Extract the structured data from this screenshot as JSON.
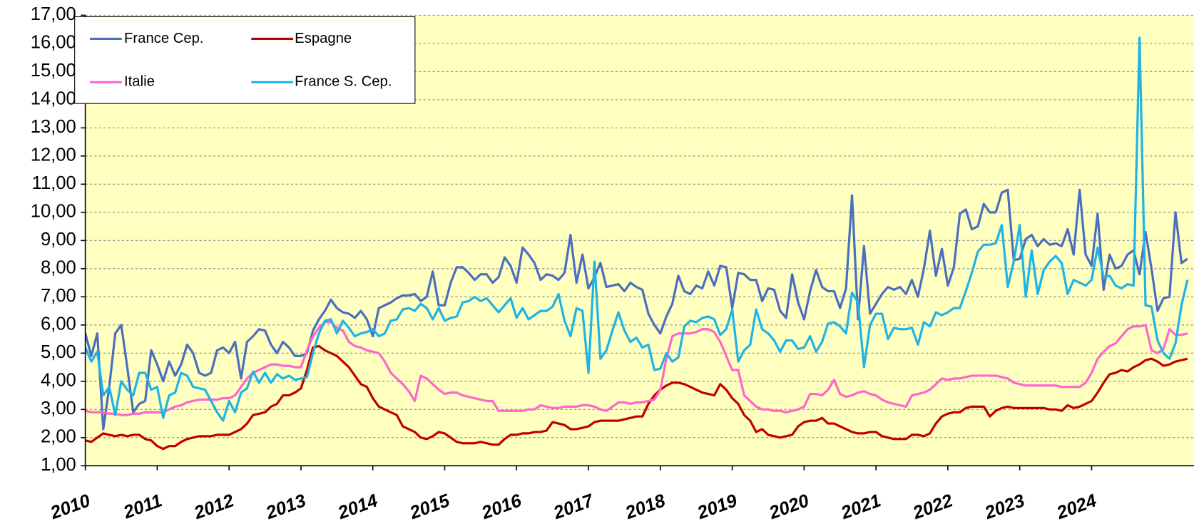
{
  "chart_data": {
    "type": "line",
    "categories": [
      "2010",
      null,
      null,
      null,
      null,
      null,
      null,
      null,
      null,
      null,
      null,
      null,
      "2011",
      null,
      null,
      null,
      null,
      null,
      null,
      null,
      null,
      null,
      null,
      null,
      "2012",
      null,
      null,
      null,
      null,
      null,
      null,
      null,
      null,
      null,
      null,
      null,
      "2013",
      null,
      null,
      null,
      null,
      null,
      null,
      null,
      null,
      null,
      null,
      null,
      "2014",
      null,
      null,
      null,
      null,
      null,
      null,
      null,
      null,
      null,
      null,
      null,
      "2015",
      null,
      null,
      null,
      null,
      null,
      null,
      null,
      null,
      null,
      null,
      null,
      "2016",
      null,
      null,
      null,
      null,
      null,
      null,
      null,
      null,
      null,
      null,
      null,
      "2017",
      null,
      null,
      null,
      null,
      null,
      null,
      null,
      null,
      null,
      null,
      null,
      "2018",
      null,
      null,
      null,
      null,
      null,
      null,
      null,
      null,
      null,
      null,
      null,
      "2019",
      null,
      null,
      null,
      null,
      null,
      null,
      null,
      null,
      null,
      null,
      null,
      "2020",
      null,
      null,
      null,
      null,
      null,
      null,
      null,
      null,
      null,
      null,
      null,
      "2021",
      null,
      null,
      null,
      null,
      null,
      null,
      null,
      null,
      null,
      null,
      null,
      "2022",
      null,
      null,
      null,
      null,
      null,
      null,
      null,
      null,
      null,
      null,
      null,
      "2023",
      null,
      null,
      null,
      null,
      null,
      null,
      null,
      null,
      null,
      null,
      null,
      "2024",
      null,
      null,
      null,
      null,
      null,
      null,
      null,
      null,
      null,
      null,
      null,
      null,
      null,
      null,
      null,
      null
    ],
    "series": [
      {
        "name": "France Cep.",
        "color": "#4a6fbf",
        "values": [
          5.7,
          4.9,
          5.7,
          2.3,
          3.8,
          5.7,
          6.0,
          4.5,
          2.9,
          3.2,
          3.3,
          5.1,
          4.6,
          4.0,
          4.7,
          4.2,
          4.6,
          5.3,
          5.0,
          4.3,
          4.2,
          4.3,
          5.1,
          5.2,
          5.0,
          5.4,
          4.1,
          5.4,
          5.6,
          5.85,
          5.8,
          5.3,
          5.0,
          5.4,
          5.2,
          4.9,
          4.9,
          5.0,
          5.8,
          6.2,
          6.5,
          6.9,
          6.6,
          6.45,
          6.4,
          6.25,
          6.5,
          6.2,
          5.6,
          6.6,
          6.7,
          6.8,
          6.95,
          7.05,
          7.05,
          7.1,
          6.85,
          7.0,
          7.9,
          6.7,
          6.7,
          7.5,
          8.05,
          8.05,
          7.85,
          7.6,
          7.8,
          7.8,
          7.5,
          7.7,
          8.4,
          8.1,
          7.5,
          8.75,
          8.5,
          8.2,
          7.6,
          7.8,
          7.75,
          7.6,
          7.85,
          9.2,
          7.5,
          8.5,
          7.3,
          7.7,
          8.2,
          7.35,
          7.4,
          7.45,
          7.2,
          7.5,
          7.35,
          7.25,
          6.4,
          6.0,
          5.7,
          6.3,
          6.75,
          7.75,
          7.2,
          7.1,
          7.4,
          7.3,
          7.9,
          7.4,
          8.1,
          8.05,
          6.6,
          7.85,
          7.8,
          7.6,
          7.6,
          6.85,
          7.3,
          7.25,
          6.5,
          6.25,
          7.8,
          6.8,
          6.2,
          7.2,
          7.95,
          7.35,
          7.2,
          7.2,
          6.6,
          7.3,
          10.6,
          6.2,
          8.8,
          6.4,
          6.75,
          7.1,
          7.35,
          7.25,
          7.35,
          7.1,
          7.6,
          7.0,
          8.0,
          9.35,
          7.75,
          8.7,
          7.4,
          8.05,
          9.95,
          10.1,
          9.4,
          9.5,
          10.3,
          10.0,
          10.0,
          10.7,
          10.8,
          8.3,
          8.35,
          9.05,
          9.2,
          8.8,
          9.05,
          8.85,
          8.9,
          8.8,
          9.4,
          8.5,
          10.8,
          8.5,
          8.1,
          9.95,
          7.25,
          8.5,
          8.0,
          8.1,
          8.5,
          8.65,
          7.8,
          9.3,
          8.0,
          6.5,
          6.95,
          7.0,
          10.0,
          8.2,
          8.35
        ]
      },
      {
        "name": "Espagne",
        "color": "#c00000",
        "values": [
          1.9,
          1.85,
          2.0,
          2.15,
          2.1,
          2.05,
          2.1,
          2.05,
          2.1,
          2.1,
          1.95,
          1.9,
          1.7,
          1.6,
          1.7,
          1.7,
          1.85,
          1.95,
          2.0,
          2.05,
          2.05,
          2.05,
          2.1,
          2.1,
          2.1,
          2.2,
          2.3,
          2.5,
          2.8,
          2.85,
          2.9,
          3.1,
          3.2,
          3.5,
          3.5,
          3.6,
          3.75,
          4.4,
          5.2,
          5.25,
          5.1,
          5.0,
          4.9,
          4.7,
          4.5,
          4.2,
          3.9,
          3.8,
          3.4,
          3.1,
          3.0,
          2.9,
          2.8,
          2.4,
          2.3,
          2.2,
          2.0,
          1.95,
          2.05,
          2.2,
          2.15,
          2.0,
          1.85,
          1.8,
          1.8,
          1.8,
          1.85,
          1.8,
          1.75,
          1.75,
          1.95,
          2.1,
          2.1,
          2.15,
          2.15,
          2.2,
          2.2,
          2.25,
          2.55,
          2.5,
          2.45,
          2.3,
          2.3,
          2.35,
          2.4,
          2.55,
          2.6,
          2.6,
          2.6,
          2.6,
          2.65,
          2.7,
          2.75,
          2.75,
          3.2,
          3.5,
          3.7,
          3.85,
          3.95,
          3.95,
          3.9,
          3.8,
          3.7,
          3.6,
          3.55,
          3.5,
          3.9,
          3.7,
          3.4,
          3.2,
          2.8,
          2.6,
          2.2,
          2.3,
          2.1,
          2.05,
          2.0,
          2.05,
          2.1,
          2.4,
          2.55,
          2.6,
          2.6,
          2.7,
          2.5,
          2.5,
          2.4,
          2.3,
          2.2,
          2.15,
          2.15,
          2.2,
          2.2,
          2.05,
          2.0,
          1.95,
          1.95,
          1.95,
          2.1,
          2.1,
          2.05,
          2.15,
          2.5,
          2.75,
          2.85,
          2.9,
          2.9,
          3.05,
          3.1,
          3.1,
          3.1,
          2.75,
          2.95,
          3.05,
          3.1,
          3.05,
          3.05,
          3.05,
          3.05,
          3.05,
          3.05,
          3.0,
          3.0,
          2.95,
          3.15,
          3.05,
          3.1,
          3.2,
          3.3,
          3.6,
          3.95,
          4.25,
          4.3,
          4.4,
          4.35,
          4.5,
          4.6,
          4.75,
          4.8,
          4.7,
          4.55,
          4.6,
          4.7,
          4.75,
          4.8
        ]
      },
      {
        "name": "Italie",
        "color": "#ff66cc",
        "values": [
          2.95,
          2.9,
          2.9,
          2.9,
          2.85,
          2.85,
          2.8,
          2.8,
          2.85,
          2.85,
          2.9,
          2.9,
          2.9,
          2.9,
          3.0,
          3.1,
          3.15,
          3.25,
          3.3,
          3.35,
          3.35,
          3.35,
          3.35,
          3.4,
          3.4,
          3.5,
          3.8,
          4.1,
          4.3,
          4.4,
          4.5,
          4.6,
          4.6,
          4.55,
          4.55,
          4.5,
          4.5,
          5.1,
          5.6,
          5.9,
          6.1,
          6.1,
          5.9,
          5.8,
          5.4,
          5.25,
          5.2,
          5.1,
          5.05,
          5.0,
          4.7,
          4.3,
          4.1,
          3.9,
          3.65,
          3.3,
          4.2,
          4.1,
          3.9,
          3.7,
          3.55,
          3.6,
          3.6,
          3.5,
          3.45,
          3.4,
          3.35,
          3.3,
          3.3,
          2.95,
          2.95,
          2.95,
          2.95,
          2.95,
          3.0,
          3.0,
          3.15,
          3.1,
          3.05,
          3.05,
          3.1,
          3.1,
          3.1,
          3.15,
          3.15,
          3.1,
          3.0,
          2.95,
          3.1,
          3.25,
          3.25,
          3.2,
          3.25,
          3.25,
          3.3,
          3.35,
          3.7,
          4.8,
          5.6,
          5.7,
          5.7,
          5.7,
          5.75,
          5.85,
          5.85,
          5.75,
          5.4,
          4.9,
          4.4,
          4.4,
          3.5,
          3.3,
          3.1,
          3.0,
          3.0,
          2.95,
          2.95,
          2.9,
          2.95,
          3.0,
          3.1,
          3.55,
          3.55,
          3.5,
          3.7,
          4.05,
          3.55,
          3.45,
          3.5,
          3.6,
          3.65,
          3.55,
          3.5,
          3.35,
          3.25,
          3.2,
          3.15,
          3.1,
          3.5,
          3.55,
          3.6,
          3.7,
          3.9,
          4.1,
          4.05,
          4.1,
          4.1,
          4.15,
          4.2,
          4.2,
          4.2,
          4.2,
          4.2,
          4.15,
          4.1,
          3.95,
          3.9,
          3.85,
          3.85,
          3.85,
          3.85,
          3.85,
          3.85,
          3.8,
          3.8,
          3.8,
          3.8,
          3.95,
          4.3,
          4.8,
          5.05,
          5.25,
          5.35,
          5.6,
          5.85,
          5.95,
          5.95,
          6.0,
          5.1,
          5.0,
          5.15,
          5.85,
          5.65,
          5.65,
          5.7
        ]
      },
      {
        "name": "France S. Cep.",
        "color": "#1eb4e6",
        "values": [
          5.2,
          4.7,
          5.05,
          3.5,
          3.8,
          2.8,
          4.0,
          3.7,
          3.5,
          4.3,
          4.3,
          3.7,
          3.8,
          2.7,
          3.5,
          3.6,
          4.3,
          4.2,
          3.8,
          3.75,
          3.7,
          3.3,
          2.9,
          2.6,
          3.3,
          2.9,
          3.6,
          3.75,
          4.35,
          3.95,
          4.3,
          3.95,
          4.25,
          4.1,
          4.2,
          4.05,
          4.1,
          4.15,
          5.0,
          5.7,
          6.15,
          6.2,
          5.7,
          6.15,
          5.9,
          5.6,
          5.7,
          5.75,
          5.85,
          5.6,
          5.7,
          6.15,
          6.2,
          6.55,
          6.6,
          6.5,
          6.75,
          6.6,
          6.2,
          6.6,
          6.15,
          6.25,
          6.3,
          6.8,
          6.85,
          7.0,
          6.85,
          6.95,
          6.7,
          6.45,
          6.7,
          6.95,
          6.25,
          6.6,
          6.2,
          6.35,
          6.5,
          6.5,
          6.65,
          7.1,
          6.15,
          5.6,
          6.6,
          6.5,
          4.3,
          8.25,
          4.8,
          5.1,
          5.8,
          6.45,
          5.8,
          5.4,
          5.55,
          5.2,
          5.3,
          4.4,
          4.45,
          5.0,
          4.7,
          4.85,
          5.95,
          6.15,
          6.1,
          6.25,
          6.3,
          6.2,
          5.65,
          5.85,
          6.55,
          4.7,
          5.1,
          5.3,
          6.55,
          5.85,
          5.7,
          5.45,
          5.05,
          5.45,
          5.45,
          5.15,
          5.2,
          5.6,
          5.05,
          5.4,
          6.05,
          6.1,
          5.95,
          5.7,
          7.15,
          6.8,
          4.5,
          6.0,
          6.4,
          6.4,
          5.5,
          5.9,
          5.85,
          5.85,
          5.9,
          5.3,
          6.1,
          5.95,
          6.45,
          6.35,
          6.45,
          6.6,
          6.6,
          7.2,
          7.85,
          8.6,
          8.85,
          8.85,
          8.9,
          9.55,
          7.35,
          8.25,
          9.55,
          7.0,
          8.65,
          7.1,
          7.95,
          8.25,
          8.45,
          8.2,
          7.1,
          7.6,
          7.5,
          7.4,
          7.6,
          8.75,
          7.7,
          7.75,
          7.4,
          7.3,
          7.45,
          7.4,
          16.2,
          6.7,
          6.65,
          5.45,
          5.0,
          4.8,
          5.35,
          6.7,
          7.6
        ]
      }
    ],
    "ylim": [
      1,
      17
    ],
    "yticks": [
      {
        "value": 1,
        "label": "1,00"
      },
      {
        "value": 2,
        "label": "2,00"
      },
      {
        "value": 3,
        "label": "3,00"
      },
      {
        "value": 4,
        "label": "4,00"
      },
      {
        "value": 5,
        "label": "5,00"
      },
      {
        "value": 6,
        "label": "6,00"
      },
      {
        "value": 7,
        "label": "7,00"
      },
      {
        "value": 8,
        "label": "8,00"
      },
      {
        "value": 9,
        "label": "9,00"
      },
      {
        "value": 10,
        "label": "10,00"
      },
      {
        "value": 11,
        "label": "11,00"
      },
      {
        "value": 12,
        "label": "12,00"
      },
      {
        "value": 13,
        "label": "13,00"
      },
      {
        "value": 14,
        "label": "14,00"
      },
      {
        "value": 15,
        "label": "15,00"
      },
      {
        "value": 16,
        "label": "16,00"
      },
      {
        "value": 17,
        "label": "17,00"
      }
    ],
    "grid": true,
    "legend": "top-left"
  }
}
